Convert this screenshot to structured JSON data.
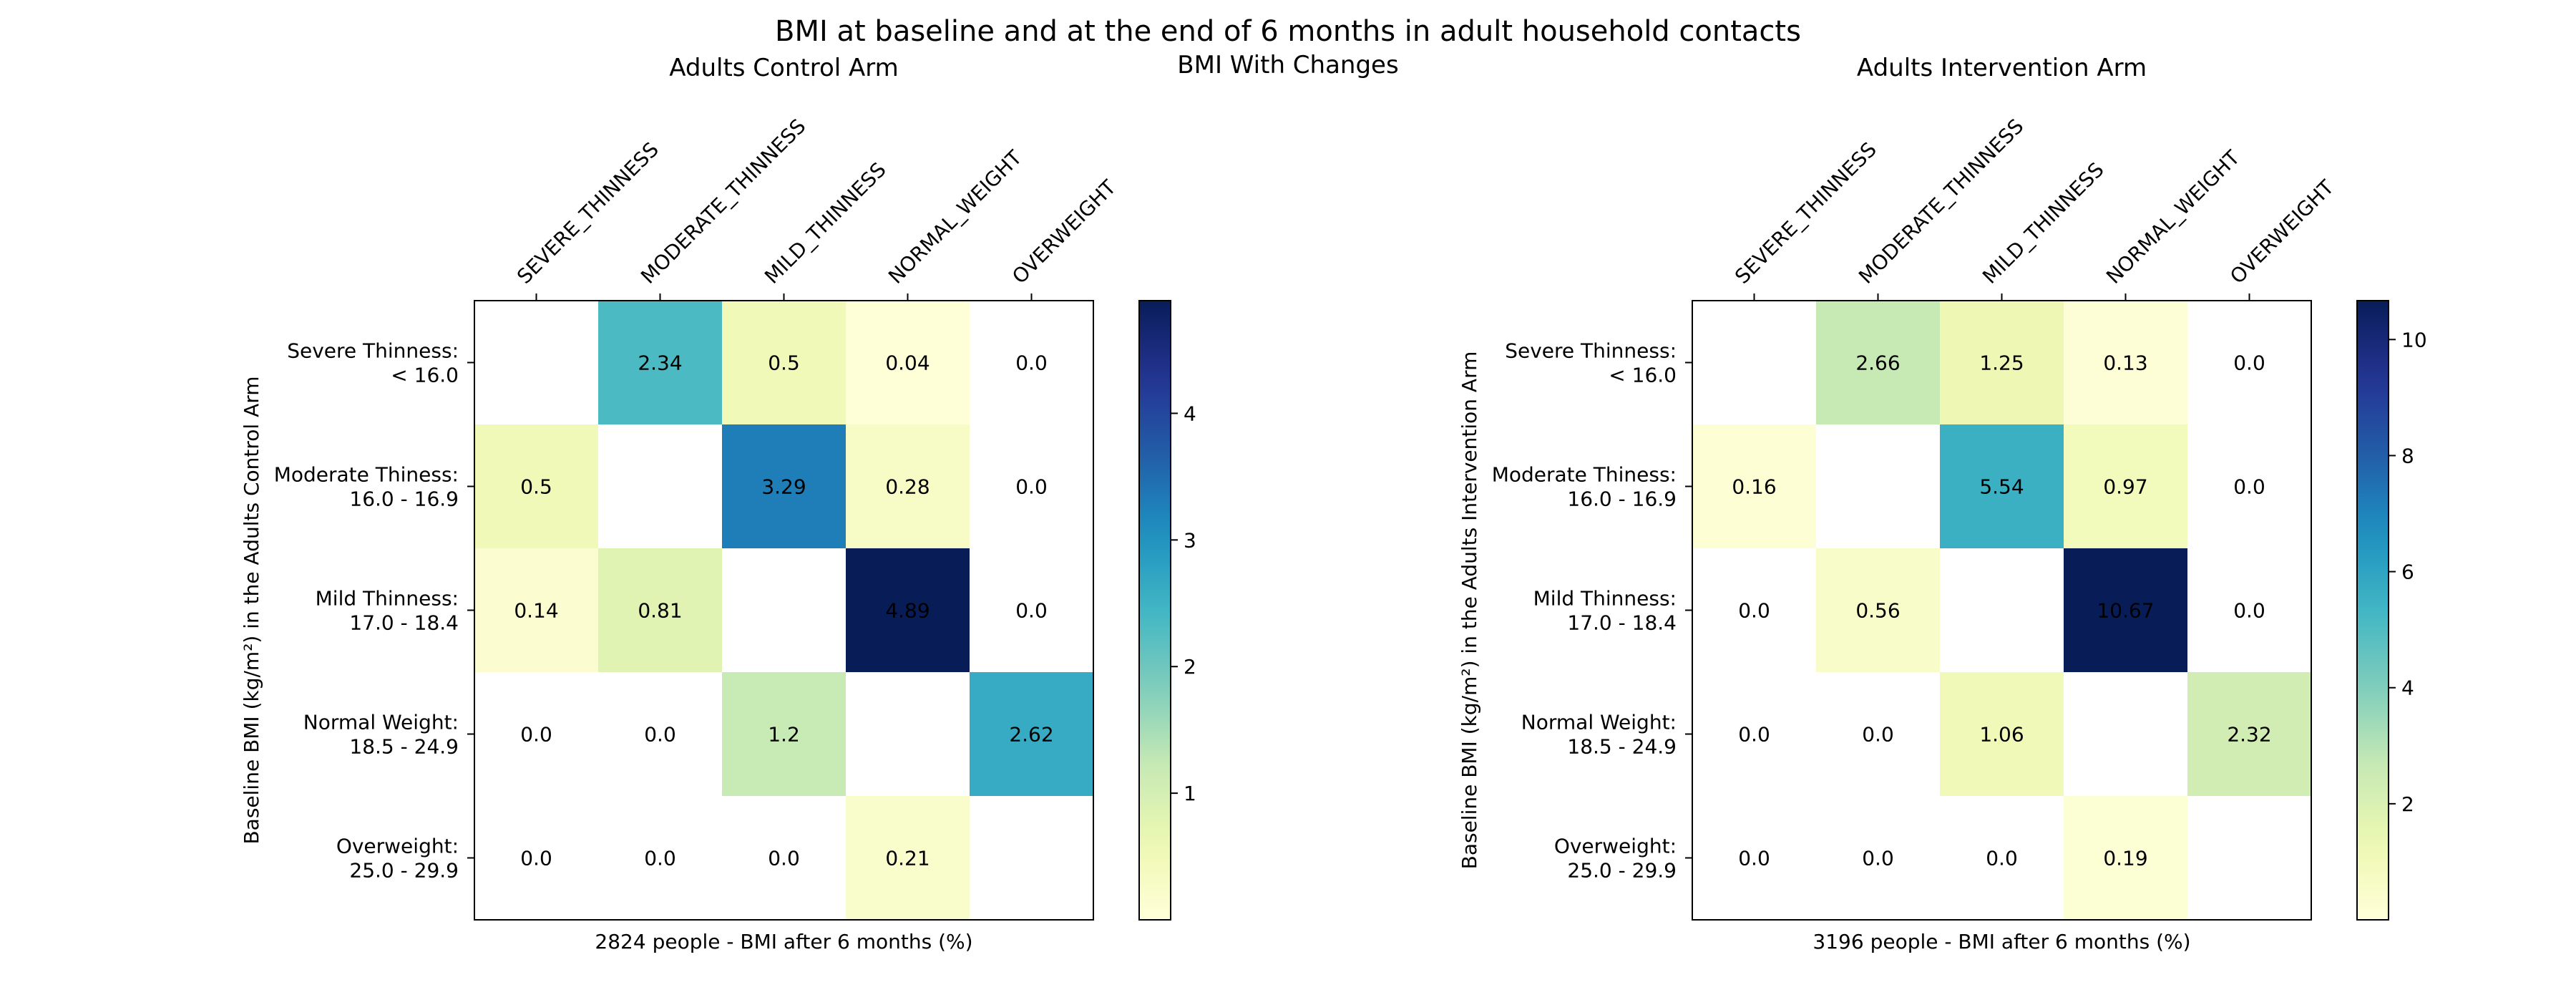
{
  "page": {
    "title": "BMI at baseline and at the end of 6 months in adult household contacts",
    "subtitle": "BMI With Changes"
  },
  "chart_data": [
    {
      "type": "heatmap",
      "title": "Adults Control Arm",
      "xlabel": "2824 people - BMI after 6 months (%)",
      "ylabel": "Baseline BMI (kg/m²) in the Adults Control Arm",
      "x_categories": [
        "SEVERE_THINNESS",
        "MODERATE_THINNESS",
        "MILD_THINNESS",
        "NORMAL_WEIGHT",
        "OVERWEIGHT"
      ],
      "y_categories": [
        [
          "Severe Thinness:",
          "< 16.0"
        ],
        [
          "Moderate Thiness:",
          "16.0 - 16.9"
        ],
        [
          "Mild Thinness:",
          "17.0 - 18.4"
        ],
        [
          "Normal Weight:",
          "18.5 - 24.9"
        ],
        [
          "Overweight:",
          "25.0 - 29.9"
        ]
      ],
      "values": [
        [
          null,
          2.34,
          0.5,
          0.04,
          0.0
        ],
        [
          0.5,
          null,
          3.29,
          0.28,
          0.0
        ],
        [
          0.14,
          0.81,
          null,
          4.89,
          0.0
        ],
        [
          0.0,
          0.0,
          1.2,
          null,
          2.62
        ],
        [
          0.0,
          0.0,
          0.0,
          0.21,
          null
        ]
      ],
      "value_labels": [
        [
          "",
          "2.34",
          "0.5",
          "0.04",
          "0.0"
        ],
        [
          "0.5",
          "",
          "3.29",
          "0.28",
          "0.0"
        ],
        [
          "0.14",
          "0.81",
          "",
          "4.89",
          "0.0"
        ],
        [
          "0.0",
          "0.0",
          "1.2",
          "",
          "2.62"
        ],
        [
          "0.0",
          "0.0",
          "0.0",
          "0.21",
          ""
        ]
      ],
      "colormap": "YlGnBu",
      "colorbar_range": [
        0.0,
        4.89
      ],
      "colorbar_ticks": [
        "1",
        "2",
        "3",
        "4"
      ],
      "colorbar_tick_values": [
        1,
        2,
        3,
        4
      ],
      "zero_cells_blank": true
    },
    {
      "type": "heatmap",
      "title": "Adults Intervention Arm",
      "xlabel": "3196 people - BMI after 6 months (%)",
      "ylabel": "Baseline BMI (kg/m²) in the Adults Intervention Arm",
      "x_categories": [
        "SEVERE_THINNESS",
        "MODERATE_THINNESS",
        "MILD_THINNESS",
        "NORMAL_WEIGHT",
        "OVERWEIGHT"
      ],
      "y_categories": [
        [
          "Severe Thinness:",
          "< 16.0"
        ],
        [
          "Moderate Thiness:",
          "16.0 - 16.9"
        ],
        [
          "Mild Thinness:",
          "17.0 - 18.4"
        ],
        [
          "Normal Weight:",
          "18.5 - 24.9"
        ],
        [
          "Overweight:",
          "25.0 - 29.9"
        ]
      ],
      "values": [
        [
          null,
          2.66,
          1.25,
          0.13,
          0.0
        ],
        [
          0.16,
          null,
          5.54,
          0.97,
          0.0
        ],
        [
          0.0,
          0.56,
          null,
          10.67,
          0.0
        ],
        [
          0.0,
          0.0,
          1.06,
          null,
          2.32
        ],
        [
          0.0,
          0.0,
          0.0,
          0.19,
          null
        ]
      ],
      "value_labels": [
        [
          "",
          "2.66",
          "1.25",
          "0.13",
          "0.0"
        ],
        [
          "0.16",
          "",
          "5.54",
          "0.97",
          "0.0"
        ],
        [
          "0.0",
          "0.56",
          "",
          "10.67",
          "0.0"
        ],
        [
          "0.0",
          "0.0",
          "1.06",
          "",
          "2.32"
        ],
        [
          "0.0",
          "0.0",
          "0.0",
          "0.19",
          ""
        ]
      ],
      "colormap": "YlGnBu",
      "colorbar_range": [
        0.0,
        10.67
      ],
      "colorbar_ticks": [
        "2",
        "4",
        "6",
        "8",
        "10"
      ],
      "colorbar_tick_values": [
        2,
        4,
        6,
        8,
        10
      ],
      "zero_cells_blank": true
    }
  ]
}
